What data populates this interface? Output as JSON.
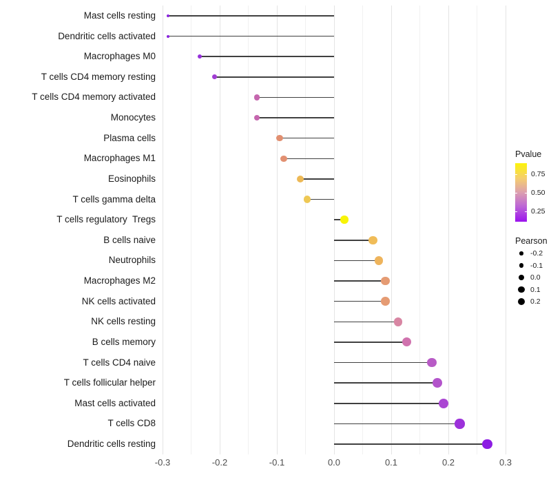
{
  "chart_data": {
    "type": "scatter",
    "subtype": "lollipop",
    "title": "",
    "xlabel": "",
    "ylabel": "",
    "xlim": [
      -0.32,
      0.32
    ],
    "grid": "on",
    "x_tick_labels": [
      "-0.3",
      "-0.2",
      "-0.1",
      "0.0",
      "0.1",
      "0.2",
      "0.3"
    ],
    "x_ticks": [
      -0.3,
      -0.2,
      -0.1,
      0.0,
      0.1,
      0.2,
      0.3
    ],
    "rows": [
      {
        "label": "Mast cells resting",
        "pearson": -0.29,
        "color": "#8A23DF"
      },
      {
        "label": "Dendritic cells activated",
        "pearson": -0.29,
        "color": "#8A23DF"
      },
      {
        "label": "Macrophages M0",
        "pearson": -0.235,
        "color": "#9631DA"
      },
      {
        "label": "T cells CD4 memory resting",
        "pearson": -0.209,
        "color": "#A13ED3"
      },
      {
        "label": "T cells CD4 memory activated",
        "pearson": -0.135,
        "color": "#C566AE"
      },
      {
        "label": "Monocytes",
        "pearson": -0.135,
        "color": "#C566AE"
      },
      {
        "label": "Plasma cells",
        "pearson": -0.095,
        "color": "#E18F70"
      },
      {
        "label": "Macrophages M1",
        "pearson": -0.088,
        "color": "#E29071"
      },
      {
        "label": "Eosinophils",
        "pearson": -0.059,
        "color": "#EDB956"
      },
      {
        "label": "T cells gamma delta",
        "pearson": -0.047,
        "color": "#EEC854"
      },
      {
        "label": "T cells regulatory  Tregs",
        "pearson": 0.018,
        "color": "#F8F407"
      },
      {
        "label": "B cells naive",
        "pearson": 0.068,
        "color": "#F0BC58"
      },
      {
        "label": "Neutrophils",
        "pearson": 0.078,
        "color": "#EEB45C"
      },
      {
        "label": "Macrophages M2",
        "pearson": 0.09,
        "color": "#E59B73"
      },
      {
        "label": "NK cells activated",
        "pearson": 0.09,
        "color": "#E59B73"
      },
      {
        "label": "NK cells resting",
        "pearson": 0.112,
        "color": "#D886A3"
      },
      {
        "label": "B cells memory",
        "pearson": 0.127,
        "color": "#D072AE"
      },
      {
        "label": "T cells CD4 naive",
        "pearson": 0.171,
        "color": "#B85BC6"
      },
      {
        "label": "T cells follicular helper",
        "pearson": 0.181,
        "color": "#B354CB"
      },
      {
        "label": "Mast cells activated",
        "pearson": 0.192,
        "color": "#AA45D2"
      },
      {
        "label": "T cells CD8",
        "pearson": 0.22,
        "color": "#9C31DA"
      },
      {
        "label": "Dendritic cells resting",
        "pearson": 0.268,
        "color": "#8D1DE3"
      }
    ]
  },
  "legend_pvalue": {
    "title": "Pvalue",
    "tick_labels": [
      "0.75",
      "0.50",
      "0.25"
    ],
    "gradient_top_color": "#FCF40A",
    "gradient_bottom_color": "#9B13ED"
  },
  "legend_pearson": {
    "title": "Pearson",
    "tick_labels": [
      "-0.2",
      "-0.1",
      "0.0",
      "0.1",
      "0.2"
    ],
    "values": [
      -0.2,
      -0.1,
      0.0,
      0.1,
      0.2
    ],
    "dot_color": "#000000"
  }
}
